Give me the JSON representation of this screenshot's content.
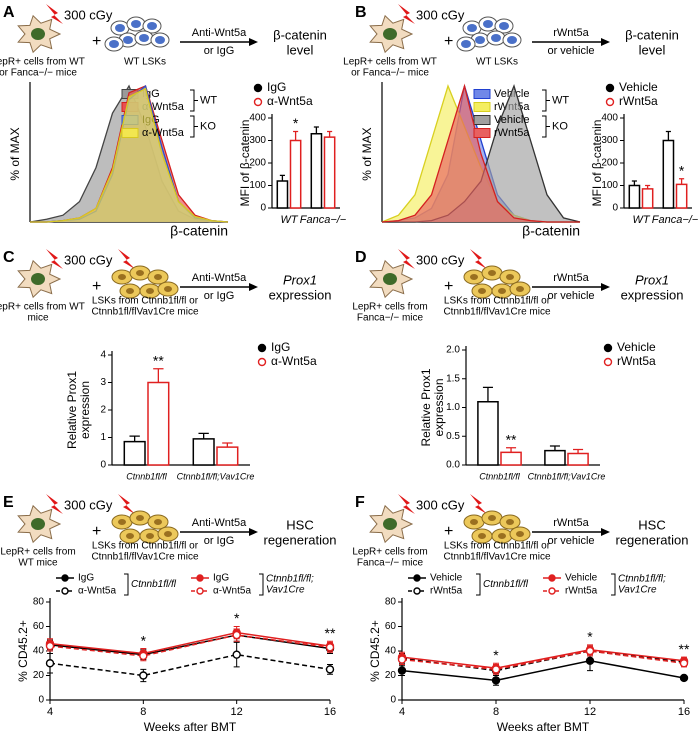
{
  "diagrams": [
    {
      "label": "A",
      "dose": "300 cGy",
      "plus": "+",
      "niche": [
        "LepR+ cells from WT",
        "or Fanca−/− mice"
      ],
      "lsk": [
        "WT LSKs"
      ],
      "treatment": [
        "Anti-Wnt5a",
        "or IgG"
      ],
      "readout": [
        "β-catenin",
        "level"
      ]
    },
    {
      "label": "B",
      "dose": "300 cGy",
      "plus": "+",
      "niche": [
        "LepR+ cells from WT",
        "or Fanca−/− mice"
      ],
      "lsk": [
        "WT LSKs"
      ],
      "treatment": [
        "rWnt5a",
        "or vehicle"
      ],
      "readout": [
        "β-catenin",
        "level"
      ]
    },
    {
      "label": "C",
      "dose": "300 cGy",
      "plus": "+",
      "niche": [
        "LepR+ cells from WT",
        "mice"
      ],
      "lsk": [
        "LSKs from Ctnnb1fl/fl or",
        "Ctnnb1fl/flVav1Cre mice"
      ],
      "treatment": [
        "Anti-Wnt5a",
        "or IgG"
      ],
      "readout": [
        "Prox1",
        "expression"
      ]
    },
    {
      "label": "D",
      "dose": "300 cGy",
      "plus": "+",
      "niche": [
        "LepR+ cells from",
        "Fanca−/− mice"
      ],
      "lsk": [
        "LSKs from Ctnnb1fl/fl or",
        "Ctnnb1fl/flVav1Cre mice"
      ],
      "treatment": [
        "rWnt5a",
        "or vehicle"
      ],
      "readout": [
        "Prox1",
        "expression"
      ]
    },
    {
      "label": "E",
      "dose": "300 cGy",
      "plus": "+",
      "niche": [
        "LepR+ cells from",
        "WT mice"
      ],
      "lsk": [
        "LSKs from Ctnnb1fl/fl or",
        "Ctnnb1fl/flVav1Cre mice"
      ],
      "treatment": [
        "Anti-Wnt5a",
        "or IgG"
      ],
      "readout": [
        "HSC",
        "regeneration"
      ]
    },
    {
      "label": "F",
      "dose": "300 cGy",
      "plus": "+",
      "niche": [
        "LepR+ cells from",
        "Fanca−/− mice"
      ],
      "lsk": [
        "LSKs from Ctnnb1fl/fl or",
        "Ctnnb1fl/flVav1Cre mice"
      ],
      "treatment": [
        "rWnt5a",
        "or vehicle"
      ],
      "readout": [
        "HSC",
        "regeneration"
      ]
    }
  ],
  "chart_data": [
    {
      "type": "density",
      "ylabel": "% of MAX",
      "xlabel": "β-catenin",
      "x": [
        0,
        1,
        2,
        3,
        4,
        5,
        6,
        7,
        8,
        9,
        10,
        11,
        12
      ],
      "xlim": [
        0,
        12
      ],
      "ylim": [
        0,
        100
      ],
      "legend_groups": [
        "WT",
        "KO"
      ],
      "series": [
        {
          "name": "IgG",
          "color": "#444444",
          "fill": "#9a9a9a",
          "values": [
            0,
            2,
            5,
            15,
            40,
            80,
            100,
            70,
            30,
            8,
            2,
            0,
            0
          ]
        },
        {
          "name": "α-Wnt5a",
          "color": "#d42020",
          "fill": "#e85050",
          "values": [
            0,
            0,
            1,
            3,
            10,
            40,
            95,
            100,
            60,
            20,
            5,
            1,
            0
          ]
        },
        {
          "name": "IgG",
          "color": "#3050c8",
          "fill": "#6f88e0",
          "values": [
            0,
            0,
            1,
            2,
            8,
            35,
            90,
            100,
            55,
            15,
            3,
            1,
            0
          ]
        },
        {
          "name": "α-Wnt5a",
          "color": "#d8c820",
          "fill": "#f2e650",
          "values": [
            0,
            0,
            1,
            3,
            10,
            38,
            92,
            98,
            50,
            15,
            4,
            1,
            0
          ]
        }
      ]
    },
    {
      "type": "bar",
      "ylabel": [
        "MFI of β-catenin"
      ],
      "categories": [
        "WT",
        "Fanca−/−"
      ],
      "ylim": [
        0,
        400
      ],
      "yticks": [
        0,
        100,
        200,
        300,
        400
      ],
      "series": [
        {
          "name": "IgG",
          "color": "#000000",
          "marker": "filled",
          "values": [
            120,
            330
          ],
          "errors": [
            25,
            30
          ]
        },
        {
          "name": "α-Wnt5a",
          "color": "#e02020",
          "marker": "open",
          "values": [
            300,
            315
          ],
          "errors": [
            40,
            25
          ]
        }
      ],
      "annotations": [
        {
          "text": "*",
          "category": "WT",
          "series": "α-Wnt5a"
        }
      ]
    },
    {
      "type": "density",
      "ylabel": "% of MAX",
      "xlabel": "β-catenin",
      "x": [
        0,
        1,
        2,
        3,
        4,
        5,
        6,
        7,
        8,
        9,
        10,
        11,
        12
      ],
      "xlim": [
        0,
        12
      ],
      "ylim": [
        0,
        100
      ],
      "legend_groups": [
        "WT",
        "KO"
      ],
      "series": [
        {
          "name": "Vehicle",
          "color": "#2040d0",
          "fill": "#7088e8",
          "values": [
            0,
            1,
            3,
            10,
            35,
            100,
            60,
            20,
            5,
            1,
            0,
            0,
            0
          ]
        },
        {
          "name": "rWnt5a",
          "color": "#d8d020",
          "fill": "#f4ee60",
          "values": [
            0,
            5,
            20,
            60,
            100,
            70,
            40,
            15,
            5,
            1,
            0,
            0,
            0
          ]
        },
        {
          "name": "Vehicle",
          "color": "#333333",
          "fill": "#a0a0a0",
          "values": [
            0,
            0,
            0,
            1,
            5,
            15,
            30,
            70,
            100,
            60,
            20,
            3,
            0
          ]
        },
        {
          "name": "rWnt5a",
          "color": "#d42020",
          "fill": "#e86060",
          "values": [
            0,
            1,
            5,
            20,
            60,
            100,
            50,
            15,
            3,
            1,
            0,
            0,
            0
          ]
        }
      ]
    },
    {
      "type": "bar",
      "ylabel": [
        "MFI of β-catenin"
      ],
      "categories": [
        "WT",
        "Fanca−/−"
      ],
      "ylim": [
        0,
        400
      ],
      "yticks": [
        0,
        100,
        200,
        300,
        400
      ],
      "series": [
        {
          "name": "Vehicle",
          "color": "#000000",
          "marker": "filled",
          "values": [
            100,
            300
          ],
          "errors": [
            20,
            40
          ]
        },
        {
          "name": "rWnt5a",
          "color": "#e02020",
          "marker": "open",
          "values": [
            85,
            105
          ],
          "errors": [
            15,
            25
          ]
        }
      ],
      "annotations": [
        {
          "text": "*",
          "category": "Fanca−/−",
          "series": "rWnt5a"
        }
      ]
    },
    {
      "type": "bar",
      "ylabel": [
        "Relative Prox1",
        "expression"
      ],
      "categories": [
        "Ctnnb1fl/fl",
        "Ctnnb1fl/fl;Vav1Cre"
      ],
      "ylim": [
        0,
        4
      ],
      "yticks": [
        0,
        1,
        2,
        3,
        4
      ],
      "series": [
        {
          "name": "IgG",
          "color": "#000000",
          "marker": "filled",
          "values": [
            0.85,
            0.95
          ],
          "errors": [
            0.2,
            0.2
          ]
        },
        {
          "name": "α-Wnt5a",
          "color": "#e02020",
          "marker": "open",
          "values": [
            3.0,
            0.65
          ],
          "errors": [
            0.5,
            0.15
          ]
        }
      ],
      "annotations": [
        {
          "text": "**",
          "category": "Ctnnb1fl/fl",
          "series": "α-Wnt5a"
        }
      ]
    },
    {
      "type": "bar",
      "ylabel": [
        "Relative Prox1",
        "expression"
      ],
      "categories": [
        "Ctnnb1fl/fl",
        "Ctnnb1fl/fl;Vav1Cre"
      ],
      "ylim": [
        0,
        2
      ],
      "yticks": [
        {
          "value": 0,
          "label": "0.0"
        },
        0.5,
        {
          "value": 1,
          "label": "1.0"
        },
        1.5,
        {
          "value": 2,
          "label": "2.0"
        }
      ],
      "series": [
        {
          "name": "Vehicle",
          "color": "#000000",
          "marker": "filled",
          "values": [
            1.1,
            0.25
          ],
          "errors": [
            0.25,
            0.08
          ]
        },
        {
          "name": "rWnt5a",
          "color": "#e02020",
          "marker": "open",
          "values": [
            0.22,
            0.2
          ],
          "errors": [
            0.08,
            0.07
          ]
        }
      ],
      "annotations": [
        {
          "text": "**",
          "category": "Ctnnb1fl/fl",
          "series": "rWnt5a"
        }
      ]
    },
    {
      "type": "line",
      "ylabel": "% CD45.2+",
      "xlabel": "Weeks after BMT",
      "x": [
        4,
        8,
        12,
        16
      ],
      "xlim": [
        4,
        16
      ],
      "xticks": [
        4,
        8,
        12,
        16
      ],
      "ylim": [
        0,
        80
      ],
      "yticks": [
        0,
        20,
        40,
        60,
        80
      ],
      "legend_groups": [
        [
          "Ctnnb1fl/fl"
        ],
        [
          "Ctnnb1fl/fl;",
          "Vav1Cre"
        ]
      ],
      "series": [
        {
          "name": "IgG",
          "color": "#000000",
          "dashed": false,
          "marker": "filled",
          "values": [
            45,
            37,
            53,
            42
          ],
          "errors": [
            4,
            4,
            5,
            4
          ]
        },
        {
          "name": "α-Wnt5a",
          "color": "#000000",
          "dashed": true,
          "marker": "open",
          "values": [
            30,
            20,
            37,
            25
          ],
          "errors": [
            8,
            5,
            10,
            4
          ]
        },
        {
          "name": "IgG",
          "color": "#e02020",
          "dashed": false,
          "marker": "filled",
          "values": [
            46,
            38,
            55,
            44
          ],
          "errors": [
            4,
            4,
            5,
            4
          ]
        },
        {
          "name": "α-Wnt5a",
          "color": "#e02020",
          "dashed": true,
          "marker": "open",
          "values": [
            44,
            36,
            53,
            43
          ],
          "errors": [
            4,
            4,
            5,
            4
          ]
        }
      ],
      "annotations": [
        {
          "text": "*",
          "x": 8
        },
        {
          "text": "*",
          "x": 12
        },
        {
          "text": "**",
          "x": 16
        }
      ]
    },
    {
      "type": "line",
      "ylabel": "% CD45.2+",
      "xlabel": "Weeks after BMT",
      "x": [
        4,
        8,
        12,
        16
      ],
      "xlim": [
        4,
        16
      ],
      "xticks": [
        4,
        8,
        12,
        16
      ],
      "ylim": [
        0,
        80
      ],
      "yticks": [
        0,
        20,
        40,
        60,
        80
      ],
      "legend_groups": [
        [
          "Ctnnb1fl/fl"
        ],
        [
          "Ctnnb1fl/fl;",
          "Vav1Cre"
        ]
      ],
      "series": [
        {
          "name": "Vehicle",
          "color": "#000000",
          "dashed": false,
          "marker": "filled",
          "values": [
            24,
            16,
            32,
            18
          ],
          "errors": [
            4,
            4,
            8,
            2
          ]
        },
        {
          "name": "rWnt5a",
          "color": "#000000",
          "dashed": true,
          "marker": "open",
          "values": [
            34,
            24,
            40,
            31
          ],
          "errors": [
            4,
            4,
            4,
            3
          ]
        },
        {
          "name": "Vehicle",
          "color": "#e02020",
          "dashed": false,
          "marker": "filled",
          "values": [
            35,
            26,
            41,
            32
          ],
          "errors": [
            4,
            4,
            4,
            3
          ]
        },
        {
          "name": "rWnt5a",
          "color": "#e02020",
          "dashed": true,
          "marker": "open",
          "values": [
            33,
            25,
            40,
            30
          ],
          "errors": [
            4,
            4,
            4,
            3
          ]
        }
      ],
      "annotations": [
        {
          "text": "*",
          "x": 8
        },
        {
          "text": "*",
          "x": 12
        },
        {
          "text": "**",
          "x": 16
        }
      ]
    }
  ]
}
